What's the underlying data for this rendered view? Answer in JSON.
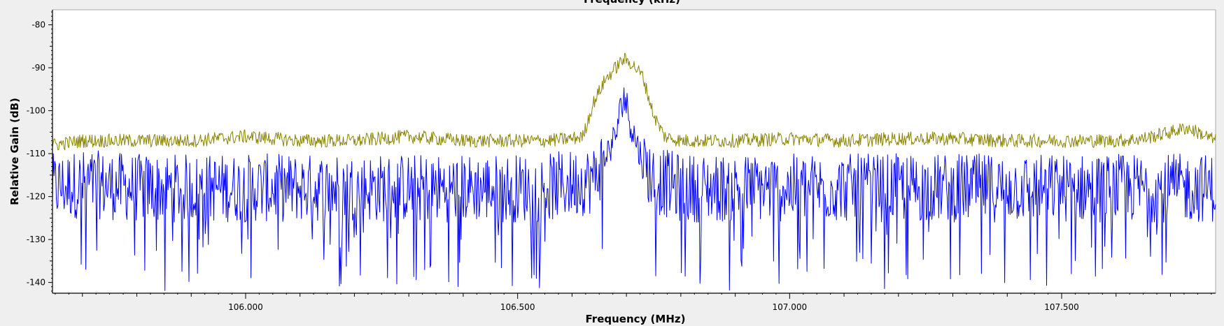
{
  "chart_data": {
    "type": "line",
    "top_title": "Frequency (kHz)",
    "xlabel": "Frequency (MHz)",
    "ylabel": "Relative Gain (dB)",
    "xlim": [
      105.645,
      107.783
    ],
    "ylim": [
      -142.5,
      -76.5
    ],
    "x_ticks": [
      106.0,
      106.5,
      107.0,
      107.5
    ],
    "x_tick_labels": [
      "106.000",
      "106.500",
      "107.000",
      "107.500"
    ],
    "y_ticks": [
      -80,
      -90,
      -100,
      -110,
      -120,
      -130,
      -140
    ],
    "y_tick_labels": [
      "-80",
      "-90",
      "-100",
      "-110",
      "-120",
      "-130",
      "-140"
    ],
    "grid": false,
    "legend": "none",
    "colors": {
      "max_hold": "#8a8400",
      "live": "#0000ff",
      "background": "#ffffff"
    },
    "series": [
      {
        "id": "max_hold",
        "x": [
          105.645,
          105.7,
          105.8,
          105.9,
          106.0,
          106.1,
          106.2,
          106.3,
          106.4,
          106.5,
          106.55,
          106.6,
          106.62,
          106.64,
          106.66,
          106.68,
          106.695,
          106.71,
          106.73,
          106.75,
          106.77,
          106.8,
          106.9,
          107.0,
          107.1,
          107.2,
          107.3,
          107.4,
          107.5,
          107.6,
          107.65,
          107.7,
          107.73,
          107.75,
          107.783
        ],
        "y": [
          -108,
          -107,
          -107,
          -107,
          -106,
          -107,
          -107,
          -106,
          -107,
          -107,
          -107,
          -106.5,
          -106,
          -98,
          -93,
          -90,
          -88,
          -89,
          -92,
          -101,
          -106,
          -107,
          -107,
          -106.5,
          -107,
          -106.5,
          -106.5,
          -107,
          -107,
          -107,
          -106.5,
          -105,
          -104,
          -105,
          -107
        ]
      },
      {
        "id": "live",
        "x": [
          105.645,
          105.7,
          105.8,
          105.9,
          106.0,
          106.1,
          106.2,
          106.3,
          106.4,
          106.5,
          106.55,
          106.6,
          106.64,
          106.66,
          106.68,
          106.695,
          106.71,
          106.73,
          106.75,
          106.8,
          106.9,
          107.0,
          107.1,
          107.2,
          107.3,
          107.4,
          107.5,
          107.6,
          107.7,
          107.783
        ],
        "y": [
          -118,
          -117,
          -118,
          -118,
          -118,
          -118,
          -118,
          -118,
          -118,
          -118,
          -118,
          -117,
          -116,
          -111,
          -106,
          -96,
          -104,
          -112,
          -116,
          -118,
          -118,
          -118,
          -118,
          -118,
          -118,
          -118,
          -118,
          -118,
          -118,
          -118
        ],
        "noise_floor_db": -128
      }
    ]
  }
}
